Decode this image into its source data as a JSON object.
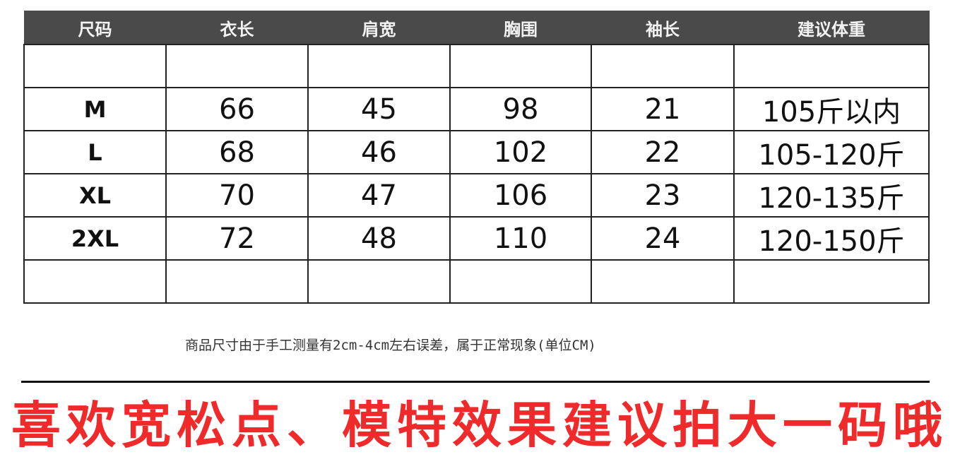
{
  "table": {
    "headers": [
      "尺码",
      "衣长",
      "肩宽",
      "胸围",
      "袖长",
      "建议体重"
    ],
    "rows": [
      [
        "",
        "",
        "",
        "",
        "",
        ""
      ],
      [
        "M",
        "66",
        "45",
        "98",
        "21",
        "105斤以内"
      ],
      [
        "L",
        "68",
        "46",
        "102",
        "22",
        "105-120斤"
      ],
      [
        "XL",
        "70",
        "47",
        "106",
        "23",
        "120-135斤"
      ],
      [
        "2XL",
        "72",
        "48",
        "110",
        "24",
        "120-150斤"
      ],
      [
        "",
        "",
        "",
        "",
        "",
        ""
      ]
    ]
  },
  "note": "商品尺寸由于手工测量有2cm-4cm左右误差，属于正常现象(单位CM)",
  "promo": "喜欢宽松点、模特效果建议拍大一码哦",
  "colors": {
    "header_bg": "#4a4a4a",
    "promo": "#f0292a"
  }
}
